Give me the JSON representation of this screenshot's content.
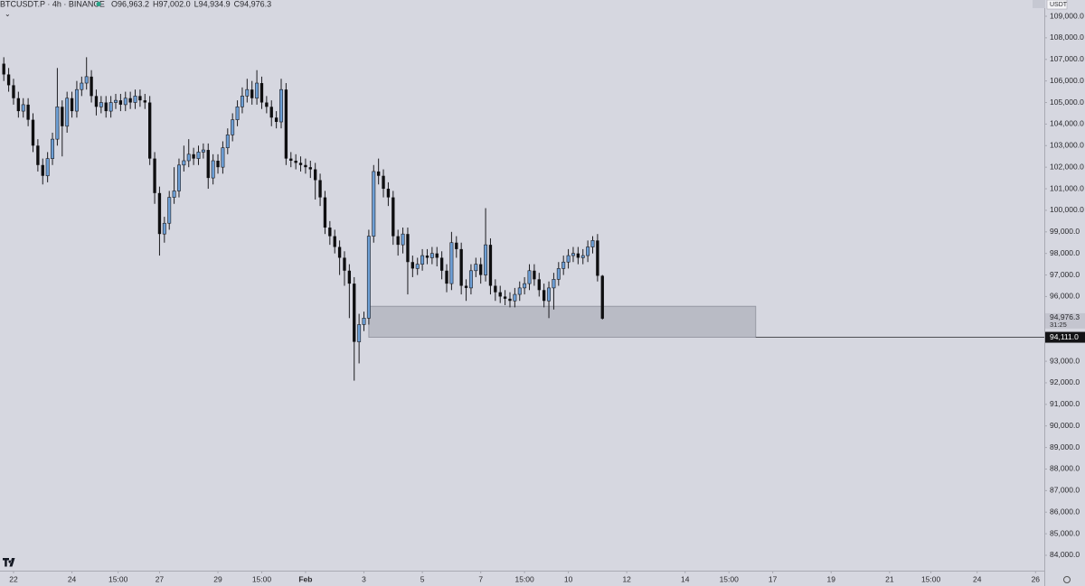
{
  "chart_data": {
    "type": "candlestick",
    "symbol": "BTCUSDT.P · 4h · BINANCE",
    "ohlc_labels": [
      "O96,963.2",
      "H97,002.0",
      "L94,934.9",
      "C94,976.3"
    ],
    "currency": "USDT",
    "up_color": "#6d9fd6",
    "down_color": "#0e0e10",
    "open": [
      106800,
      106300,
      105800,
      105200,
      104600,
      104900,
      104200,
      103000,
      102100,
      101600,
      102400,
      103300,
      104800,
      103900,
      105200,
      104600,
      105600,
      105900,
      106200,
      105300,
      104800,
      105000,
      104600,
      105000,
      105100,
      104900,
      105200,
      105000,
      105300,
      105100,
      105000,
      102400,
      100800,
      98900,
      99400,
      100600,
      100900,
      102100,
      102300,
      102600,
      102400,
      102700,
      102800,
      101500,
      102300,
      102000,
      102900,
      103500,
      104200,
      104800,
      105300,
      105600,
      105200,
      105900,
      105000,
      104800,
      104300,
      104100,
      105600,
      102400,
      102300,
      102200,
      102100,
      102000,
      101900,
      101400,
      100600,
      99200,
      98800,
      98300,
      97800,
      97200,
      96600,
      93900,
      94700,
      95000,
      98800,
      101800,
      101600,
      101000,
      100600,
      98800,
      98400,
      98900,
      97600,
      97300,
      97500,
      97900,
      97800,
      98000,
      97800,
      97200,
      96600,
      98500,
      98200,
      96500,
      96400,
      97200,
      97500,
      97000,
      98400,
      96500,
      96200,
      96000,
      95900,
      95800,
      96100,
      96400,
      96600,
      97200,
      96800,
      96300,
      95800,
      96400,
      96800,
      97300,
      97600,
      97900,
      98000,
      97800,
      97900,
      98300,
      98600,
      96963.2
    ],
    "high": [
      107100,
      106600,
      106100,
      105500,
      105200,
      105200,
      104500,
      103300,
      102400,
      102700,
      103600,
      106600,
      105100,
      105500,
      105500,
      106000,
      106200,
      107100,
      106500,
      105600,
      105300,
      105300,
      105300,
      105400,
      105400,
      105500,
      105500,
      105600,
      105600,
      105400,
      105300,
      102700,
      101100,
      99700,
      100900,
      102000,
      102400,
      103000,
      103300,
      102900,
      103000,
      103100,
      103100,
      102600,
      102600,
      103200,
      103800,
      104500,
      105100,
      105700,
      106100,
      106000,
      106500,
      106200,
      105300,
      105100,
      104600,
      106100,
      105900,
      102700,
      102600,
      102500,
      102400,
      102300,
      102200,
      101700,
      100900,
      99500,
      99100,
      98600,
      98100,
      97500,
      96900,
      95200,
      95300,
      99100,
      102100,
      102400,
      101900,
      101300,
      100900,
      99100,
      99200,
      99200,
      97900,
      97800,
      98200,
      98200,
      98300,
      98300,
      98100,
      97500,
      99000,
      98800,
      98500,
      96800,
      97500,
      97800,
      97800,
      100100,
      98700,
      96800,
      96500,
      96300,
      96200,
      96400,
      96700,
      96900,
      97500,
      97500,
      97100,
      96600,
      96700,
      97100,
      97600,
      97900,
      98200,
      98300,
      98300,
      98200,
      98600,
      98800,
      98900,
      97002
    ],
    "low": [
      106000,
      105500,
      104900,
      104300,
      104300,
      103900,
      102700,
      101800,
      101200,
      101300,
      102100,
      103000,
      102500,
      103600,
      104300,
      104300,
      105300,
      105600,
      105000,
      104400,
      104500,
      104300,
      104300,
      104700,
      104600,
      104600,
      104700,
      104700,
      104800,
      104700,
      102100,
      100300,
      97900,
      98500,
      99100,
      100300,
      100600,
      101800,
      102000,
      102100,
      102100,
      102400,
      101000,
      101200,
      101700,
      101700,
      102600,
      103200,
      103900,
      104500,
      105000,
      104900,
      104900,
      104700,
      104500,
      103900,
      103800,
      103800,
      102100,
      102000,
      101900,
      101800,
      101700,
      101500,
      100500,
      100200,
      98900,
      98400,
      98000,
      97000,
      96500,
      95000,
      92100,
      92900,
      94400,
      94700,
      98500,
      101200,
      100600,
      100200,
      98400,
      97900,
      98000,
      96100,
      96900,
      97000,
      97200,
      97500,
      97500,
      97400,
      96800,
      96200,
      96300,
      97800,
      96100,
      95800,
      96100,
      96900,
      96600,
      96700,
      96100,
      95800,
      95700,
      95600,
      95500,
      95500,
      95800,
      96100,
      96300,
      96500,
      96000,
      95500,
      95000,
      95400,
      96500,
      97000,
      97300,
      97600,
      97500,
      97500,
      97600,
      98000,
      96700,
      94934.9
    ],
    "close": [
      106300,
      105800,
      105200,
      104600,
      104900,
      104200,
      103000,
      102100,
      101600,
      102400,
      103300,
      104800,
      103900,
      105200,
      104600,
      105600,
      105900,
      106200,
      105300,
      104800,
      105000,
      104600,
      105000,
      105100,
      104900,
      105200,
      105000,
      105300,
      105100,
      105000,
      102400,
      100800,
      98900,
      99400,
      100600,
      100900,
      102100,
      102300,
      102600,
      102400,
      102700,
      102800,
      101500,
      102300,
      102000,
      102900,
      103500,
      104200,
      104800,
      105300,
      105600,
      105200,
      105900,
      105000,
      104800,
      104300,
      104100,
      105600,
      102400,
      102300,
      102200,
      102100,
      102000,
      101900,
      101400,
      100600,
      99200,
      98800,
      98300,
      97800,
      97200,
      96600,
      93900,
      94700,
      95000,
      98800,
      101800,
      101600,
      101000,
      100600,
      98800,
      98400,
      98900,
      97600,
      97300,
      97500,
      97900,
      97800,
      98000,
      97800,
      97200,
      96600,
      98500,
      98200,
      96500,
      96400,
      97200,
      97500,
      97000,
      98400,
      96500,
      96200,
      96000,
      95900,
      95800,
      96100,
      96400,
      96600,
      97200,
      96800,
      96300,
      95800,
      96400,
      96800,
      97300,
      97600,
      97900,
      98000,
      97800,
      97900,
      98300,
      98600,
      96963.2,
      94976.3
    ],
    "xlim": [
      -0.78,
      213.8
    ],
    "xticks": [
      {
        "value": 2,
        "label": "22"
      },
      {
        "value": 14,
        "label": "24"
      },
      {
        "value": 23.5,
        "label": "15:00"
      },
      {
        "value": 32,
        "label": "27"
      },
      {
        "value": 44,
        "label": "29"
      },
      {
        "value": 53,
        "label": "15:00"
      },
      {
        "value": 62,
        "label": "Feb"
      },
      {
        "value": 74,
        "label": "3"
      },
      {
        "value": 86,
        "label": "5"
      },
      {
        "value": 98,
        "label": "7"
      },
      {
        "value": 107,
        "label": "15:00"
      },
      {
        "value": 116,
        "label": "10"
      },
      {
        "value": 128,
        "label": "12"
      },
      {
        "value": 140,
        "label": "14"
      },
      {
        "value": 149,
        "label": "15:00"
      },
      {
        "value": 158,
        "label": "17"
      },
      {
        "value": 170,
        "label": "19"
      },
      {
        "value": 182,
        "label": "21"
      },
      {
        "value": 190.5,
        "label": "15:00"
      },
      {
        "value": 200,
        "label": "24"
      },
      {
        "value": 212,
        "label": "26"
      }
    ],
    "ylim": [
      83288,
      109754
    ],
    "yticks": [
      {
        "value": 84000,
        "label": "84,000.0"
      },
      {
        "value": 85000,
        "label": "85,000.0"
      },
      {
        "value": 86000,
        "label": "86,000.0"
      },
      {
        "value": 87000,
        "label": "87,000.0"
      },
      {
        "value": 88000,
        "label": "88,000.0"
      },
      {
        "value": 89000,
        "label": "89,000.0"
      },
      {
        "value": 90000,
        "label": "90,000.0"
      },
      {
        "value": 91000,
        "label": "91,000.0"
      },
      {
        "value": 92000,
        "label": "92,000.0"
      },
      {
        "value": 93000,
        "label": "93,000.0"
      },
      {
        "value": 95000,
        "label": "95,000.0"
      },
      {
        "value": 96000,
        "label": "96,000.0"
      },
      {
        "value": 97000,
        "label": "97,000.0"
      },
      {
        "value": 98000,
        "label": "98,000.0"
      },
      {
        "value": 99000,
        "label": "99,000.0"
      },
      {
        "value": 100000,
        "label": "100,000.0"
      },
      {
        "value": 101000,
        "label": "101,000.0"
      },
      {
        "value": 102000,
        "label": "102,000.0"
      },
      {
        "value": 103000,
        "label": "103,000.0"
      },
      {
        "value": 104000,
        "label": "104,000.0"
      },
      {
        "value": 105000,
        "label": "105,000.0"
      },
      {
        "value": 106000,
        "label": "106,000.0"
      },
      {
        "value": 107000,
        "label": "107,000.0"
      },
      {
        "value": 108000,
        "label": "108,000.0"
      },
      {
        "value": 109000,
        "label": "109,000.0"
      }
    ],
    "zone": {
      "top": 95550,
      "bottom": 94111,
      "x_start": 75,
      "x_end": 154.5
    },
    "price_line": {
      "value": 94111,
      "label": "94,111.0"
    },
    "last_price": {
      "value": 94976.3,
      "label": "94,976.3"
    },
    "countdown": "31:25"
  }
}
